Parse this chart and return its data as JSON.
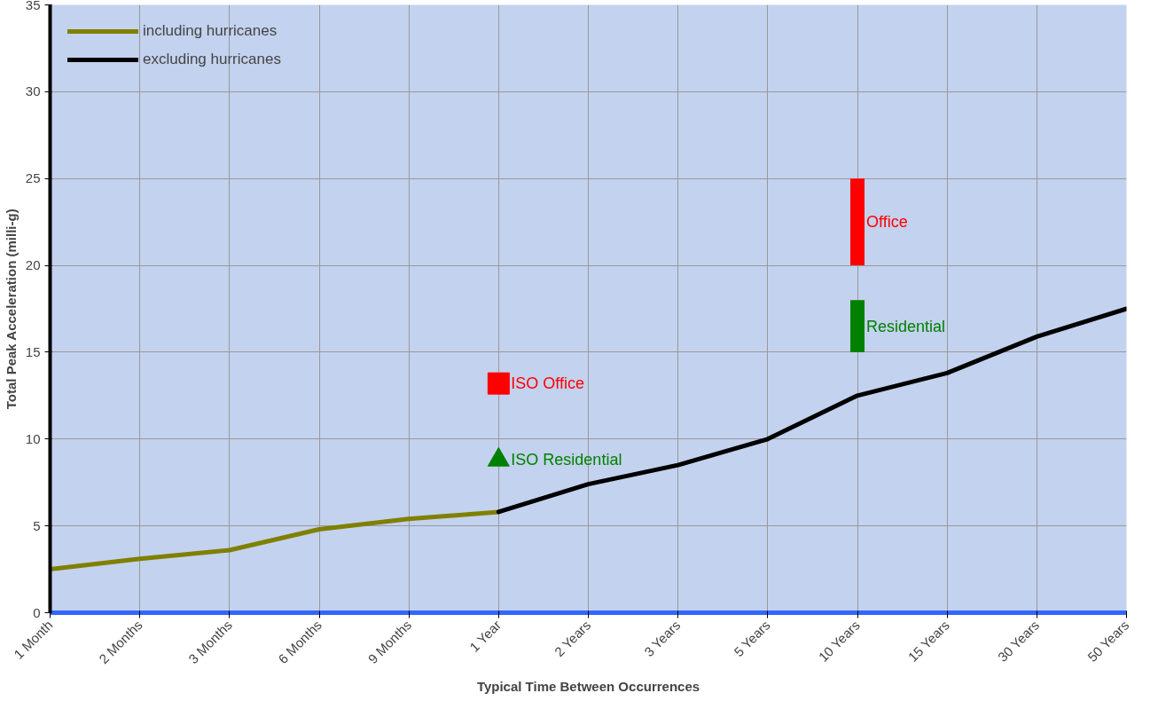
{
  "chart_data": {
    "type": "line",
    "xlabel": "Typical Time Between Occurrences",
    "ylabel": "Total Peak Acceleration (milli-g)",
    "categories": [
      "1 Month",
      "2 Months",
      "3 Months",
      "6 Months",
      "9 Months",
      "1 Year",
      "2 Years",
      "3 Years",
      "5 Years",
      "10 Years",
      "15 Years",
      "30 Years",
      "50 Years"
    ],
    "ylim": [
      0,
      35
    ],
    "yticks": [
      0,
      5,
      10,
      15,
      20,
      25,
      30,
      35
    ],
    "grid": true,
    "legend": "top left",
    "line_style": "solid",
    "series": [
      {
        "name": "including hurricanes",
        "color": "#808000",
        "x": [
          "1 Month",
          "2 Months",
          "3 Months",
          "6 Months",
          "9 Months",
          "1 Year"
        ],
        "values": [
          2.5,
          3.1,
          3.6,
          4.8,
          5.4,
          5.8
        ]
      },
      {
        "name": "excluding hurricanes",
        "color": "#000000",
        "x": [
          "1 Year",
          "2 Years",
          "3 Years",
          "5 Years",
          "10 Years",
          "15 Years",
          "30 Years",
          "50 Years"
        ],
        "values": [
          5.8,
          7.4,
          8.5,
          10,
          12.5,
          13.8,
          15.9,
          17.5
        ]
      },
      {
        "name": "ISO Office",
        "type": "scatter",
        "marker": "square",
        "color": "#ff0000",
        "x": [
          "1 Year"
        ],
        "values": [
          13.2
        ]
      },
      {
        "name": "ISO Residential",
        "type": "scatter",
        "marker": "triangle",
        "color": "#008000",
        "x": [
          "1 Year"
        ],
        "values": [
          8.8
        ]
      },
      {
        "name": "Office",
        "type": "bar",
        "color": "#ff0000",
        "x": [
          "10 Years"
        ],
        "base": [
          20
        ],
        "values": [
          5
        ]
      },
      {
        "name": "Residential",
        "type": "bar",
        "color": "#008000",
        "x": [
          "10 Years"
        ],
        "base": [
          15
        ],
        "values": [
          3
        ]
      }
    ]
  }
}
